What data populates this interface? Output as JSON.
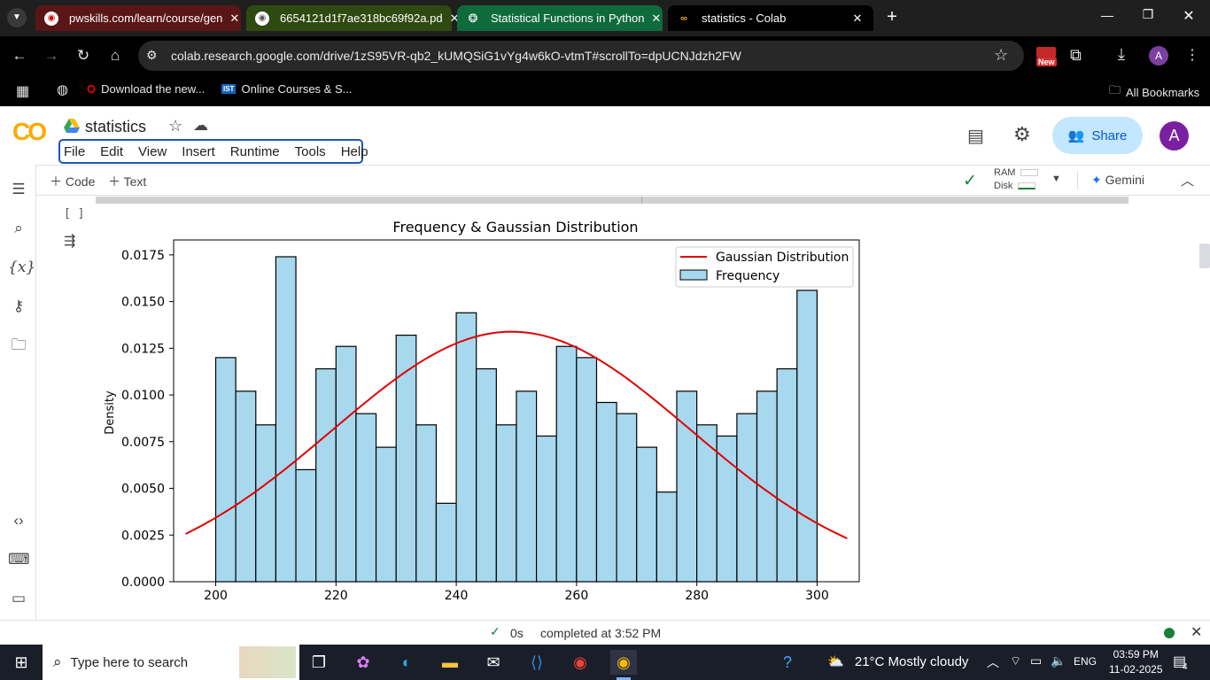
{
  "browser": {
    "tabs": [
      {
        "title": "pwskills.com/learn/course/gen",
        "active": false
      },
      {
        "title": "6654121d1f7ae318bc69f92a.pd",
        "active": false
      },
      {
        "title": "Statistical Functions in Python",
        "active": false
      },
      {
        "title": "statistics - Colab",
        "active": true
      }
    ],
    "url": "colab.research.google.com/drive/1zS95VR-qb2_kUMQSiG1vYg4w6kO-vtmT#scrollTo=dpUCNJdzh2FW",
    "new_badge": "New",
    "profile_letter": "A",
    "bookmarks": [
      "Download the new...",
      "Online Courses & S..."
    ],
    "all_bookmarks": "All Bookmarks"
  },
  "colab": {
    "logo": "CO",
    "notebook_title": "statistics",
    "menu": [
      "File",
      "Edit",
      "View",
      "Insert",
      "Runtime",
      "Tools",
      "Help"
    ],
    "share_label": "Share",
    "avatar_letter": "A",
    "add_code": "Code",
    "add_text": "Text",
    "ram_label": "RAM",
    "disk_label": "Disk",
    "gemini_label": "Gemini",
    "cell_brackets": "[ ]"
  },
  "chart_data": {
    "type": "bar",
    "title": "Frequency & Gaussian Distribution",
    "ylabel": "Density",
    "xlabel": "",
    "xlim": [
      193,
      307
    ],
    "ylim": [
      0,
      0.0183
    ],
    "x_ticks": [
      "200",
      "220",
      "240",
      "260",
      "280",
      "300"
    ],
    "y_ticks": [
      "0.0000",
      "0.0025",
      "0.0050",
      "0.0075",
      "0.0100",
      "0.0125",
      "0.0150",
      "0.0175"
    ],
    "bin_start": 200,
    "bin_width": 3.333,
    "values": [
      0.012,
      0.0102,
      0.0084,
      0.0174,
      0.006,
      0.0114,
      0.0126,
      0.009,
      0.0072,
      0.0132,
      0.0084,
      0.0042,
      0.0144,
      0.0114,
      0.0084,
      0.0102,
      0.0078,
      0.0126,
      0.012,
      0.0096,
      0.009,
      0.0072,
      0.0048,
      0.0102,
      0.0084,
      0.0078,
      0.009,
      0.0102,
      0.0114,
      0.0156
    ],
    "bar_color": "#a8d8ee",
    "gaussian": {
      "mean": 249.2,
      "std": 29.8,
      "x_range": [
        195,
        305
      ],
      "color": "#e00000"
    },
    "legend": [
      "Gaussian Distribution",
      "Frequency"
    ],
    "legend_position": "top-right"
  },
  "status": {
    "duration": "0s",
    "completed": "completed at 3:52 PM"
  },
  "taskbar": {
    "search_placeholder": "Type here to search",
    "weather": "21°C  Mostly cloudy",
    "lang": "ENG",
    "time": "03:59 PM",
    "date": "11-02-2025",
    "notif_count": "4"
  }
}
